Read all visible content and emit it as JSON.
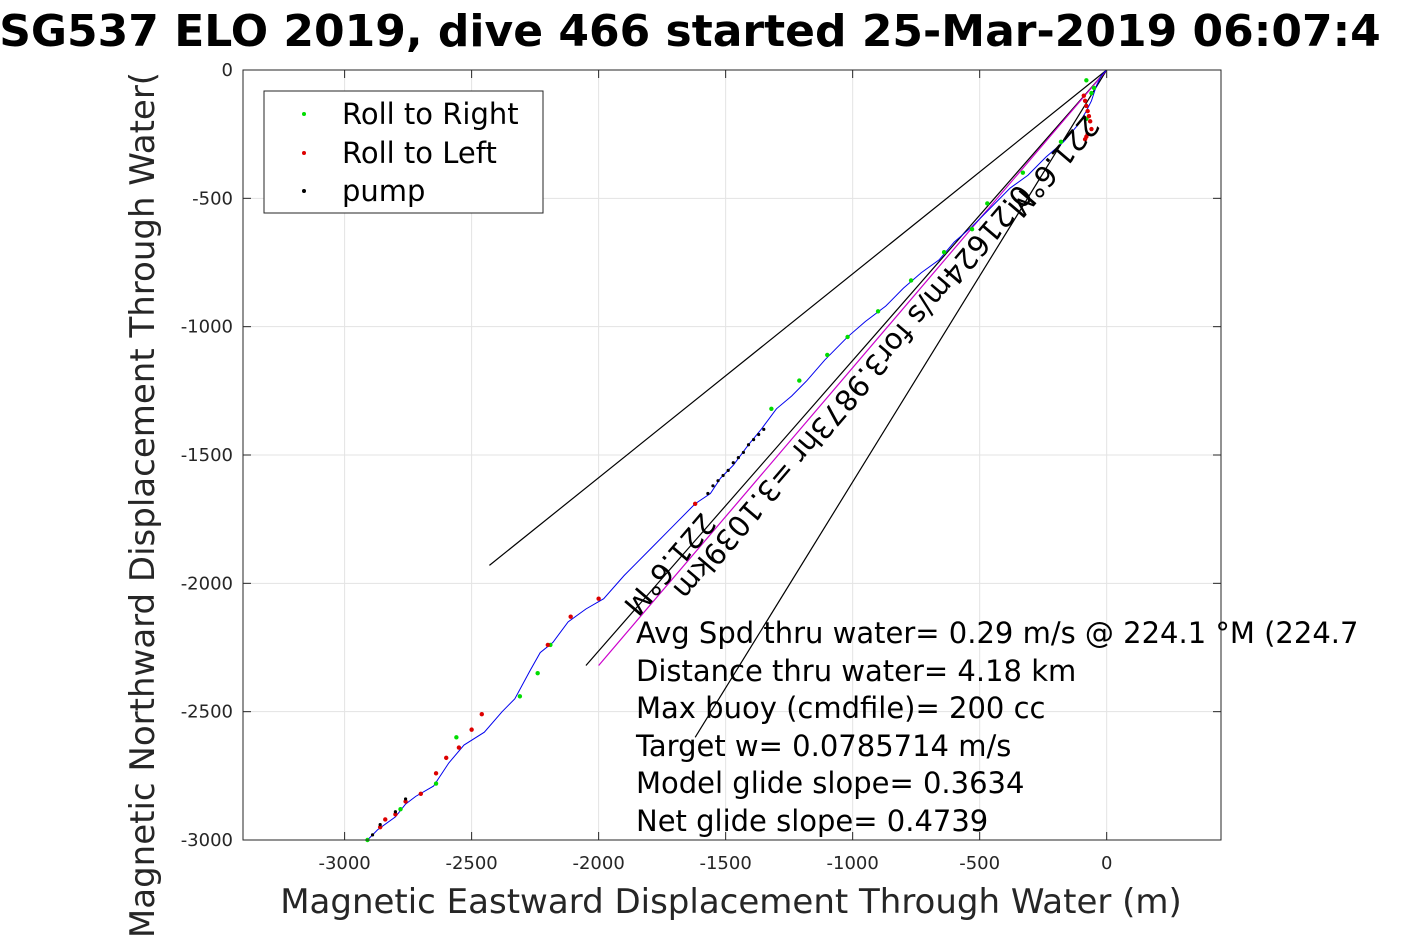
{
  "chart_data": {
    "type": "scatter",
    "title": "SG537 ELO 2019, dive 466 started 25-Mar-2019 06:07:4",
    "xlabel": "Magnetic Eastward Displacement Through Water (m)",
    "ylabel": "Magnetic Northward Displacement Through Water(",
    "xlim": [
      -3400,
      450
    ],
    "ylim": [
      -3000,
      0
    ],
    "x_ticks": [
      -3000,
      -2500,
      -2000,
      -1500,
      -1000,
      -500,
      0
    ],
    "y_ticks": [
      0,
      -500,
      -1000,
      -1500,
      -2000,
      -2500,
      -3000
    ],
    "grid": true,
    "legend_position": "top-left",
    "legend": [
      {
        "label": "Roll to Right",
        "color": "#00dd00"
      },
      {
        "label": "Roll to Left",
        "color": "#dd0000"
      },
      {
        "label": "pump",
        "color": "#000000"
      }
    ],
    "track": {
      "color": "#0000ee",
      "x": [
        -2910,
        -2870,
        -2800,
        -2760,
        -2720,
        -2650,
        -2590,
        -2530,
        -2450,
        -2380,
        -2330,
        -2270,
        -2230,
        -2180,
        -2120,
        -2050,
        -1980,
        -1900,
        -1800,
        -1700,
        -1620,
        -1560,
        -1520,
        -1470,
        -1410,
        -1360,
        -1300,
        -1240,
        -1180,
        -1110,
        -1020,
        -950,
        -870,
        -800,
        -730,
        -660,
        -600,
        -530,
        -460,
        -380,
        -310,
        -240,
        -170,
        -110,
        -80,
        -60,
        -40,
        -20,
        0
      ],
      "y": [
        -3000,
        -2960,
        -2910,
        -2860,
        -2830,
        -2790,
        -2700,
        -2630,
        -2580,
        -2500,
        -2450,
        -2340,
        -2270,
        -2230,
        -2150,
        -2100,
        -2060,
        -1970,
        -1870,
        -1770,
        -1690,
        -1650,
        -1590,
        -1540,
        -1460,
        -1400,
        -1320,
        -1270,
        -1210,
        -1130,
        -1040,
        -980,
        -920,
        -850,
        -790,
        -740,
        -670,
        -610,
        -540,
        -460,
        -410,
        -340,
        -280,
        -210,
        -160,
        -120,
        -60,
        -20,
        0
      ]
    },
    "roll_right": {
      "x": [
        -2910,
        -2780,
        -2640,
        -2560,
        -2310,
        -2240,
        -2190,
        -1320,
        -1210,
        -1100,
        -1020,
        -900,
        -770,
        -640,
        -530,
        -470,
        -330,
        -180,
        -80,
        -60,
        -50,
        -80
      ],
      "y": [
        -3000,
        -2880,
        -2780,
        -2600,
        -2440,
        -2350,
        -2240,
        -1320,
        -1210,
        -1110,
        -1040,
        -940,
        -820,
        -710,
        -620,
        -520,
        -400,
        -280,
        -190,
        -90,
        -70,
        -40
      ]
    },
    "roll_left": {
      "x": [
        -2860,
        -2840,
        -2800,
        -2760,
        -2700,
        -2640,
        -2600,
        -2550,
        -2500,
        -2460,
        -2200,
        -2110,
        -2000,
        -1620,
        -90,
        -85,
        -80,
        -75,
        -70,
        -65,
        -60,
        -75,
        -80,
        -85
      ],
      "y": [
        -2950,
        -2920,
        -2900,
        -2850,
        -2820,
        -2740,
        -2680,
        -2640,
        -2570,
        -2510,
        -2240,
        -2130,
        -2060,
        -1690,
        -100,
        -120,
        -140,
        -160,
        -180,
        -200,
        -230,
        -250,
        -260,
        -270
      ]
    },
    "pump": {
      "x": [
        -2890,
        -2860,
        -2800,
        -2760,
        -1570,
        -1550,
        -1530,
        -1510,
        -1490,
        -1470,
        -1450,
        -1430,
        -1410,
        -1390,
        -1370,
        -1350
      ],
      "y": [
        -2980,
        -2940,
        -2890,
        -2840,
        -1650,
        -1620,
        -1600,
        -1580,
        -1560,
        -1530,
        -1510,
        -1490,
        -1460,
        -1440,
        -1420,
        -1400
      ]
    },
    "reference_lines": [
      {
        "color": "#000000",
        "x": [
          0,
          -2430
        ],
        "y": [
          0,
          -1930
        ]
      },
      {
        "color": "#000000",
        "x": [
          0,
          -1620
        ],
        "y": [
          0,
          -2600
        ]
      },
      {
        "color": "#000000",
        "x": [
          0,
          -2050
        ],
        "y": [
          0,
          -2320
        ]
      },
      {
        "color": "#cc00cc",
        "x": [
          0,
          -2000
        ],
        "y": [
          0,
          -2320
        ]
      }
    ],
    "rotated_annotations": [
      {
        "text": "221.6°M",
        "x": -1750,
        "y": -1900
      },
      {
        "text": "0.21624m/s for3.9873hr =3.1039km",
        "x": -1030,
        "y": -1230
      },
      {
        "text": "221.6°M",
        "x": -240,
        "y": -350
      }
    ],
    "stats": [
      "Avg Spd thru water=  0.29 m/s @ 224.1 °M (224.7",
      "Distance thru water=  4.18 km",
      "Max buoy (cmdfile)= 200 cc",
      "Target w= 0.0785714 m/s",
      "Model glide slope= 0.3634",
      "Net glide slope= 0.4739"
    ]
  }
}
